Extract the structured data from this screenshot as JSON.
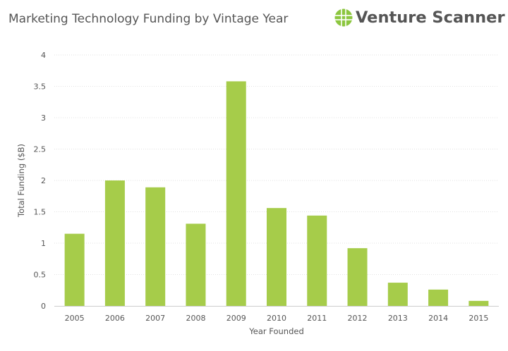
{
  "header": {
    "title": "Marketing Technology Funding by Vintage Year"
  },
  "brand": {
    "name": "Venture Scanner",
    "icon": "venture-scanner-logo-icon",
    "color": "#8cc63f"
  },
  "chart_data": {
    "type": "bar",
    "title": "Marketing Technology Funding by Vintage Year",
    "xlabel": "Year Founded",
    "ylabel": "Total Funding ($B)",
    "categories": [
      "2005",
      "2006",
      "2007",
      "2008",
      "2009",
      "2010",
      "2011",
      "2012",
      "2013",
      "2014",
      "2015"
    ],
    "values": [
      1.15,
      2.0,
      1.89,
      1.31,
      3.58,
      1.56,
      1.44,
      0.92,
      0.37,
      0.26,
      0.08
    ],
    "ylim": [
      0,
      4
    ],
    "yticks": [
      "0",
      "0.5",
      "1",
      "1.5",
      "2",
      "2.5",
      "3",
      "3.5",
      "4"
    ],
    "ytick_values": [
      0,
      0.5,
      1,
      1.5,
      2,
      2.5,
      3,
      3.5,
      4
    ],
    "bar_color": "#a6cc4a",
    "grid": true,
    "legend": "none"
  }
}
